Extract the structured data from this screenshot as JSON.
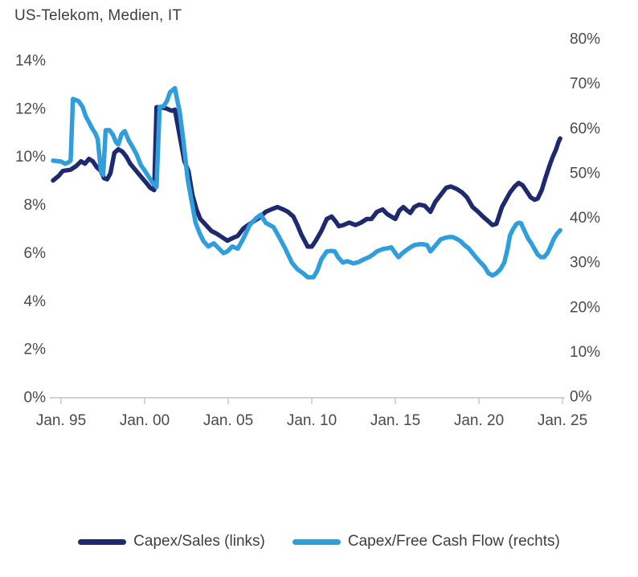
{
  "title": "US-Telekom, Medien, IT",
  "colors": {
    "navy": "#1f2a6e",
    "light_blue": "#2f9edb",
    "axis_line": "#d2d2d2",
    "tick_mark": "#c8c8c8",
    "axis_text": "#4a4a4a",
    "title_text": "#3e3e3e"
  },
  "legend": {
    "items": [
      {
        "label": "Capex/Sales (links)",
        "series": "capex_sales"
      },
      {
        "label": "Capex/Free Cash Flow (rechts)",
        "series": "capex_fcf"
      }
    ]
  },
  "chart_data": {
    "type": "line",
    "title": "US-Telekom, Medien, IT",
    "grid": false,
    "legend_position": "bottom",
    "x_axis": {
      "ticks": [
        {
          "year": 1995,
          "label": "Jan. 95"
        },
        {
          "year": 2000,
          "label": "Jan. 00"
        },
        {
          "year": 2005,
          "label": "Jan. 05"
        },
        {
          "year": 2010,
          "label": "Jan. 10"
        },
        {
          "year": 2015,
          "label": "Jan. 15"
        },
        {
          "year": 2020,
          "label": "Jan. 20"
        },
        {
          "year": 2025,
          "label": "Jan. 25"
        }
      ],
      "range_years": [
        1994.4,
        2025.4
      ]
    },
    "left_axis": {
      "range": [
        0,
        14
      ],
      "ticks": [
        {
          "value": 0,
          "label": "0%"
        },
        {
          "value": 2,
          "label": "2%"
        },
        {
          "value": 4,
          "label": "4%"
        },
        {
          "value": 6,
          "label": "6%"
        },
        {
          "value": 8,
          "label": "8%"
        },
        {
          "value": 10,
          "label": "10%"
        },
        {
          "value": 12,
          "label": "12%"
        },
        {
          "value": 14,
          "label": "14%"
        }
      ]
    },
    "right_axis": {
      "range": [
        0,
        80
      ],
      "ticks": [
        {
          "value": 0,
          "label": "0%"
        },
        {
          "value": 10,
          "label": "10%"
        },
        {
          "value": 20,
          "label": "20%"
        },
        {
          "value": 30,
          "label": "30%"
        },
        {
          "value": 40,
          "label": "40%"
        },
        {
          "value": 50,
          "label": "50%"
        },
        {
          "value": 60,
          "label": "60%"
        },
        {
          "value": 70,
          "label": "70%"
        },
        {
          "value": 80,
          "label": "80%"
        }
      ]
    },
    "series": [
      {
        "name": "Capex/Sales (links)",
        "axis": "left",
        "color": "#1f2a6e",
        "points": [
          [
            1994.52,
            9.0
          ],
          [
            1994.86,
            9.2
          ],
          [
            1995.1,
            9.4
          ],
          [
            1995.57,
            9.45
          ],
          [
            1995.9,
            9.6
          ],
          [
            1996.19,
            9.8
          ],
          [
            1996.43,
            9.7
          ],
          [
            1996.67,
            9.9
          ],
          [
            1996.9,
            9.8
          ],
          [
            1997.14,
            9.55
          ],
          [
            1997.38,
            9.4
          ],
          [
            1997.57,
            9.1
          ],
          [
            1997.76,
            9.05
          ],
          [
            1997.95,
            9.3
          ],
          [
            1998.19,
            10.15
          ],
          [
            1998.43,
            10.3
          ],
          [
            1998.67,
            10.2
          ],
          [
            1998.9,
            10.0
          ],
          [
            1999.14,
            9.7
          ],
          [
            1999.38,
            9.5
          ],
          [
            1999.62,
            9.3
          ],
          [
            1999.86,
            9.1
          ],
          [
            2000.1,
            8.9
          ],
          [
            2000.33,
            8.7
          ],
          [
            2000.57,
            8.6
          ],
          [
            2000.71,
            12.05
          ],
          [
            2000.95,
            12.05
          ],
          [
            2001.29,
            12.0
          ],
          [
            2001.62,
            11.9
          ],
          [
            2001.81,
            11.95
          ],
          [
            2002.14,
            10.7
          ],
          [
            2002.38,
            9.8
          ],
          [
            2002.62,
            9.4
          ],
          [
            2002.86,
            8.4
          ],
          [
            2003.1,
            7.8
          ],
          [
            2003.33,
            7.4
          ],
          [
            2003.67,
            7.15
          ],
          [
            2004.0,
            6.9
          ],
          [
            2004.29,
            6.8
          ],
          [
            2004.62,
            6.65
          ],
          [
            2004.95,
            6.5
          ],
          [
            2005.24,
            6.6
          ],
          [
            2005.57,
            6.7
          ],
          [
            2005.9,
            7.0
          ],
          [
            2006.19,
            7.15
          ],
          [
            2006.52,
            7.3
          ],
          [
            2006.86,
            7.45
          ],
          [
            2007.24,
            7.7
          ],
          [
            2007.57,
            7.8
          ],
          [
            2007.95,
            7.9
          ],
          [
            2008.29,
            7.8
          ],
          [
            2008.57,
            7.7
          ],
          [
            2008.9,
            7.5
          ],
          [
            2009.14,
            7.15
          ],
          [
            2009.38,
            6.75
          ],
          [
            2009.76,
            6.25
          ],
          [
            2010.0,
            6.25
          ],
          [
            2010.24,
            6.5
          ],
          [
            2010.57,
            6.9
          ],
          [
            2010.9,
            7.4
          ],
          [
            2011.19,
            7.5
          ],
          [
            2011.43,
            7.3
          ],
          [
            2011.62,
            7.1
          ],
          [
            2011.9,
            7.15
          ],
          [
            2012.24,
            7.25
          ],
          [
            2012.62,
            7.15
          ],
          [
            2012.95,
            7.25
          ],
          [
            2013.29,
            7.4
          ],
          [
            2013.57,
            7.4
          ],
          [
            2013.9,
            7.7
          ],
          [
            2014.24,
            7.8
          ],
          [
            2014.52,
            7.6
          ],
          [
            2014.76,
            7.5
          ],
          [
            2015.0,
            7.4
          ],
          [
            2015.24,
            7.75
          ],
          [
            2015.48,
            7.9
          ],
          [
            2015.71,
            7.75
          ],
          [
            2015.9,
            7.65
          ],
          [
            2016.14,
            7.9
          ],
          [
            2016.43,
            8.0
          ],
          [
            2016.76,
            7.95
          ],
          [
            2017.1,
            7.7
          ],
          [
            2017.38,
            8.1
          ],
          [
            2017.71,
            8.4
          ],
          [
            2018.05,
            8.7
          ],
          [
            2018.33,
            8.75
          ],
          [
            2018.67,
            8.65
          ],
          [
            2019.0,
            8.5
          ],
          [
            2019.29,
            8.3
          ],
          [
            2019.62,
            7.9
          ],
          [
            2019.95,
            7.7
          ],
          [
            2020.24,
            7.5
          ],
          [
            2020.57,
            7.3
          ],
          [
            2020.81,
            7.15
          ],
          [
            2021.05,
            7.2
          ],
          [
            2021.38,
            7.9
          ],
          [
            2021.62,
            8.2
          ],
          [
            2021.86,
            8.5
          ],
          [
            2022.14,
            8.75
          ],
          [
            2022.38,
            8.9
          ],
          [
            2022.62,
            8.8
          ],
          [
            2022.86,
            8.55
          ],
          [
            2023.1,
            8.3
          ],
          [
            2023.33,
            8.2
          ],
          [
            2023.52,
            8.25
          ],
          [
            2023.76,
            8.6
          ],
          [
            2024.0,
            9.15
          ],
          [
            2024.24,
            9.65
          ],
          [
            2024.43,
            10.0
          ],
          [
            2024.62,
            10.3
          ],
          [
            2024.76,
            10.6
          ],
          [
            2024.86,
            10.75
          ]
        ]
      },
      {
        "name": "Capex/Free Cash Flow (rechts)",
        "axis": "right",
        "color": "#2f9edb",
        "points": [
          [
            1994.52,
            52.7
          ],
          [
            1995.0,
            52.5
          ],
          [
            1995.24,
            52.0
          ],
          [
            1995.43,
            52.3
          ],
          [
            1995.57,
            52.7
          ],
          [
            1995.71,
            66.5
          ],
          [
            1996.05,
            66.0
          ],
          [
            1996.29,
            64.7
          ],
          [
            1996.48,
            62.6
          ],
          [
            1996.67,
            61.3
          ],
          [
            1996.86,
            59.9
          ],
          [
            1997.05,
            58.8
          ],
          [
            1997.19,
            57.5
          ],
          [
            1997.38,
            50.5
          ],
          [
            1997.52,
            49.5
          ],
          [
            1997.67,
            59.5
          ],
          [
            1997.9,
            59.5
          ],
          [
            1998.1,
            58.5
          ],
          [
            1998.29,
            56.8
          ],
          [
            1998.43,
            56.3
          ],
          [
            1998.62,
            58.6
          ],
          [
            1998.81,
            59.3
          ],
          [
            1999.05,
            57.2
          ],
          [
            1999.29,
            55.7
          ],
          [
            1999.52,
            54.1
          ],
          [
            1999.76,
            51.8
          ],
          [
            2000.0,
            50.5
          ],
          [
            2000.24,
            49.1
          ],
          [
            2000.48,
            47.7
          ],
          [
            2000.71,
            46.8
          ],
          [
            2000.9,
            64.7
          ],
          [
            2001.14,
            64.9
          ],
          [
            2001.33,
            66.0
          ],
          [
            2001.52,
            68.0
          ],
          [
            2001.81,
            68.9
          ],
          [
            2002.1,
            63.5
          ],
          [
            2002.33,
            56.8
          ],
          [
            2002.57,
            48.6
          ],
          [
            2002.81,
            43.7
          ],
          [
            2003.05,
            38.8
          ],
          [
            2003.29,
            36.5
          ],
          [
            2003.52,
            34.7
          ],
          [
            2003.81,
            33.5
          ],
          [
            2004.14,
            34.2
          ],
          [
            2004.48,
            32.9
          ],
          [
            2004.71,
            32.0
          ],
          [
            2004.95,
            32.4
          ],
          [
            2005.24,
            33.5
          ],
          [
            2005.57,
            33.0
          ],
          [
            2005.9,
            35.2
          ],
          [
            2006.29,
            38.3
          ],
          [
            2006.67,
            39.8
          ],
          [
            2006.95,
            40.6
          ],
          [
            2007.24,
            38.8
          ],
          [
            2007.48,
            38.3
          ],
          [
            2007.71,
            37.8
          ],
          [
            2008.05,
            35.6
          ],
          [
            2008.43,
            32.9
          ],
          [
            2008.81,
            29.9
          ],
          [
            2009.14,
            28.4
          ],
          [
            2009.48,
            27.5
          ],
          [
            2009.76,
            26.6
          ],
          [
            2010.1,
            26.6
          ],
          [
            2010.33,
            28.1
          ],
          [
            2010.57,
            30.6
          ],
          [
            2010.9,
            32.4
          ],
          [
            2011.19,
            32.5
          ],
          [
            2011.38,
            32.4
          ],
          [
            2011.57,
            31.1
          ],
          [
            2011.86,
            29.9
          ],
          [
            2012.14,
            30.2
          ],
          [
            2012.48,
            29.7
          ],
          [
            2012.81,
            30.0
          ],
          [
            2013.1,
            30.6
          ],
          [
            2013.43,
            31.1
          ],
          [
            2013.67,
            31.7
          ],
          [
            2013.9,
            32.4
          ],
          [
            2014.24,
            32.9
          ],
          [
            2014.52,
            33.1
          ],
          [
            2014.76,
            33.3
          ],
          [
            2015.0,
            32.0
          ],
          [
            2015.19,
            31.1
          ],
          [
            2015.43,
            32.0
          ],
          [
            2015.67,
            32.7
          ],
          [
            2015.9,
            33.3
          ],
          [
            2016.14,
            33.8
          ],
          [
            2016.43,
            34.0
          ],
          [
            2016.67,
            34.0
          ],
          [
            2016.9,
            33.8
          ],
          [
            2017.1,
            32.4
          ],
          [
            2017.38,
            33.6
          ],
          [
            2017.71,
            35.1
          ],
          [
            2017.95,
            35.4
          ],
          [
            2018.19,
            35.6
          ],
          [
            2018.43,
            35.6
          ],
          [
            2018.67,
            35.2
          ],
          [
            2018.9,
            34.7
          ],
          [
            2019.14,
            33.8
          ],
          [
            2019.38,
            33.1
          ],
          [
            2019.62,
            32.0
          ],
          [
            2019.86,
            30.9
          ],
          [
            2020.1,
            29.9
          ],
          [
            2020.33,
            29.0
          ],
          [
            2020.57,
            27.5
          ],
          [
            2020.81,
            27.0
          ],
          [
            2021.05,
            27.5
          ],
          [
            2021.29,
            28.4
          ],
          [
            2021.52,
            29.9
          ],
          [
            2021.71,
            32.9
          ],
          [
            2021.86,
            36.0
          ],
          [
            2022.05,
            37.4
          ],
          [
            2022.24,
            38.5
          ],
          [
            2022.38,
            38.8
          ],
          [
            2022.52,
            38.7
          ],
          [
            2022.71,
            37.1
          ],
          [
            2022.95,
            35.2
          ],
          [
            2023.14,
            34.2
          ],
          [
            2023.33,
            32.9
          ],
          [
            2023.52,
            31.7
          ],
          [
            2023.71,
            31.1
          ],
          [
            2023.9,
            31.1
          ],
          [
            2024.1,
            32.0
          ],
          [
            2024.29,
            33.5
          ],
          [
            2024.48,
            35.2
          ],
          [
            2024.67,
            36.3
          ],
          [
            2024.86,
            37.1
          ]
        ]
      }
    ]
  }
}
